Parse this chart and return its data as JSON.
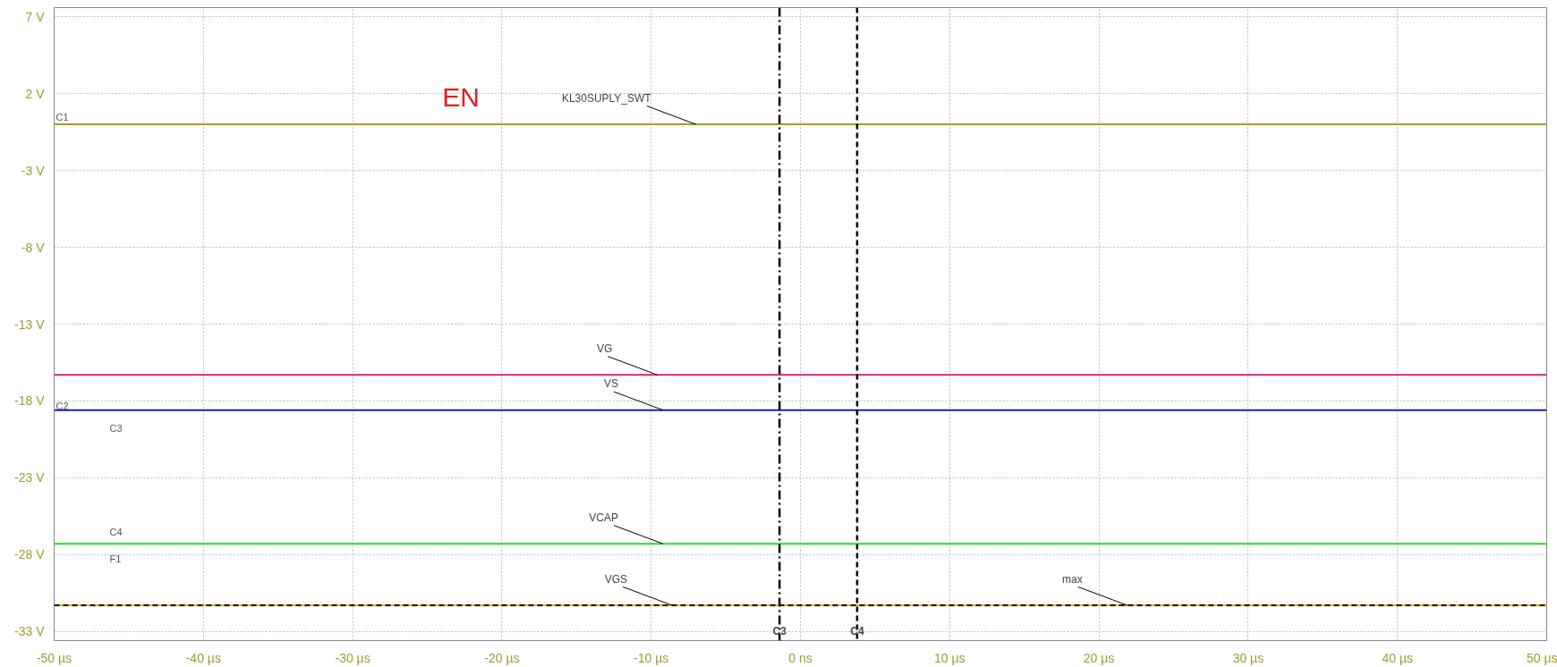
{
  "chart_data": {
    "type": "line",
    "x": [
      -50,
      50
    ],
    "series": [
      {
        "color": "#a6a000",
        "values": [
          0,
          0
        ]
      },
      {
        "color": "#e0207a",
        "values": [
          -16.3,
          -16.3
        ]
      },
      {
        "color": "#1020c0",
        "values": [
          -18.6,
          -18.6
        ]
      },
      {
        "color": "#22dd22",
        "values": [
          -27.3,
          -27.3
        ]
      },
      {
        "color": "#f0b400",
        "values": [
          -31.3,
          -31.3
        ]
      },
      {
        "color": "#000000",
        "values": [
          -31.3,
          -31.3
        ],
        "line_style": "dashed"
      }
    ],
    "xlim": [
      -50,
      50
    ],
    "ylim": [
      -33.6,
      7.6
    ],
    "xticks": [
      {
        "value": -50,
        "label": "-50 µs"
      },
      {
        "value": -40,
        "label": "-40 µs"
      },
      {
        "value": -30,
        "label": "-30 µs"
      },
      {
        "value": -20,
        "label": "-20 µs"
      },
      {
        "value": -10,
        "label": "-10 µs"
      },
      {
        "value": 0,
        "label": "0 ns"
      },
      {
        "value": 10,
        "label": "10 µs"
      },
      {
        "value": 20,
        "label": "20 µs"
      },
      {
        "value": 30,
        "label": "30 µs"
      },
      {
        "value": 40,
        "label": "40 µs"
      },
      {
        "value": 50,
        "label": "50 µs"
      }
    ],
    "yticks": [
      {
        "value": 7,
        "label": "7 V"
      },
      {
        "value": 2,
        "label": "2 V"
      },
      {
        "value": -3,
        "label": "-3 V"
      },
      {
        "value": -8,
        "label": "-8 V"
      },
      {
        "value": -13,
        "label": "-13 V"
      },
      {
        "value": -18,
        "label": "-18 V"
      },
      {
        "value": -23,
        "label": "-23 V"
      },
      {
        "value": -28,
        "label": "-28 V"
      },
      {
        "value": -33,
        "label": "-33 V"
      }
    ],
    "grid": true,
    "line_style": "solid",
    "ref_lines": [
      {
        "axis": "x",
        "value": -1.4,
        "label": "C3",
        "line_style": "dashdot",
        "color": "#000000"
      },
      {
        "axis": "x",
        "value": 3.8,
        "label": "C4",
        "line_style": "dashed",
        "color": "#000000"
      }
    ],
    "annotations": [
      "EN",
      {
        "text": "KL30SUPLY_SWT",
        "x": -7.0,
        "y": 0
      },
      {
        "text": "VG",
        "x": -9.6,
        "y": -16.3
      },
      {
        "text": "VS",
        "x": -9.2,
        "y": -18.6
      },
      {
        "text": "VCAP",
        "x": -9.2,
        "y": -27.3
      },
      {
        "text": "VGS",
        "x": -8.6,
        "y": -31.3
      },
      {
        "text": "max",
        "x": 21.9,
        "y": -31.3
      },
      {
        "text": "C1",
        "x": -50,
        "y": 0
      },
      {
        "text": "C2",
        "x": -50,
        "y": -18.8
      },
      "C3",
      "C4",
      "F1"
    ]
  }
}
